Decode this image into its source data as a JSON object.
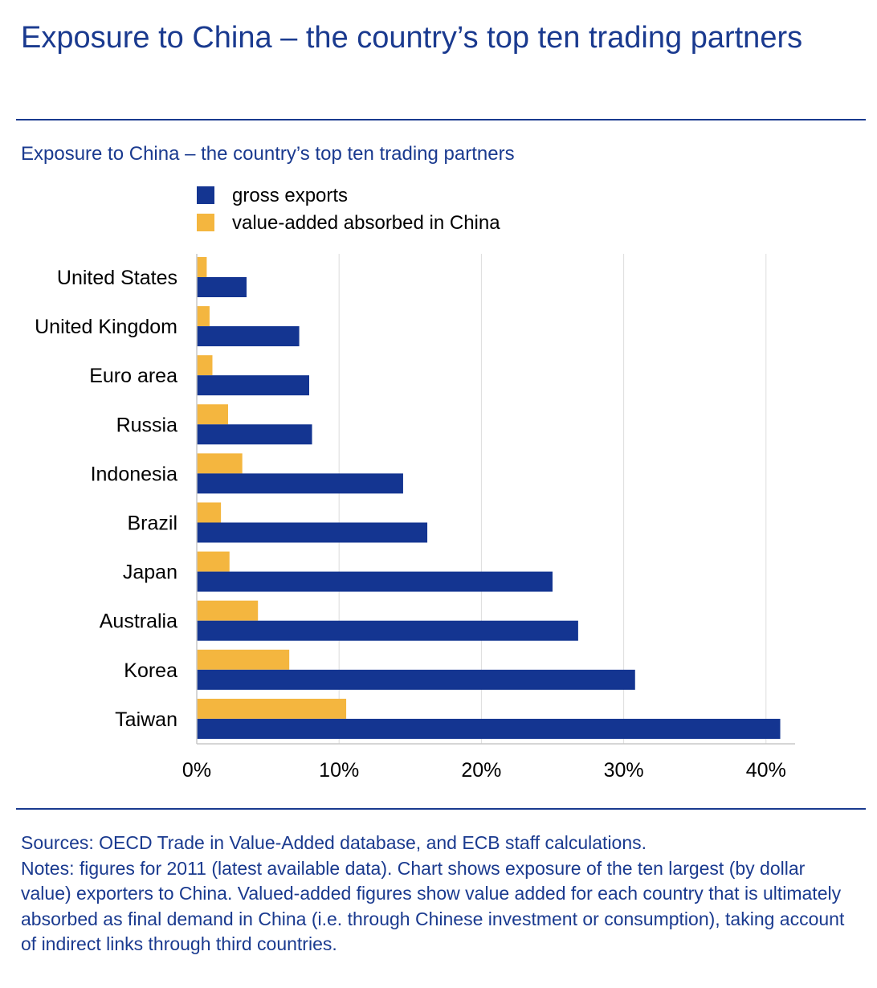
{
  "title": "Exposure to China – the country’s top ten trading partners",
  "chart_data": {
    "type": "bar",
    "orientation": "horizontal",
    "title": "Exposure to China – the country’s top ten trading partners",
    "categories": [
      "United States",
      "United Kingdom",
      "Euro area",
      "Russia",
      "Indonesia",
      "Brazil",
      "Japan",
      "Australia",
      "Korea",
      "Taiwan"
    ],
    "series": [
      {
        "name": "gross exports",
        "color": "#143591",
        "values": [
          3.5,
          7.2,
          7.9,
          8.1,
          14.5,
          16.2,
          25.0,
          26.8,
          30.8,
          41.0
        ]
      },
      {
        "name": "value-added absorbed in China",
        "color": "#f4b63f",
        "values": [
          0.7,
          0.9,
          1.1,
          2.2,
          3.2,
          1.7,
          2.3,
          4.3,
          6.5,
          10.5
        ]
      }
    ],
    "xlim": [
      0,
      42
    ],
    "xticks": [
      0,
      10,
      20,
      30,
      40
    ],
    "xtick_labels": [
      "0%",
      "10%",
      "20%",
      "30%",
      "40%"
    ],
    "xlabel": "",
    "ylabel": "",
    "grid": true,
    "legend_position": "top-left"
  },
  "footer": {
    "sources": "Sources: OECD Trade in Value-Added database, and ECB staff calculations.",
    "notes": "Notes: figures for 2011 (latest available data). Chart shows exposure of the ten largest (by dollar value) exporters to China. Valued-added figures show value added for each country that is ultimately absorbed as final demand in China (i.e. through Chinese investment or consumption), taking account of indirect links through third countries."
  }
}
